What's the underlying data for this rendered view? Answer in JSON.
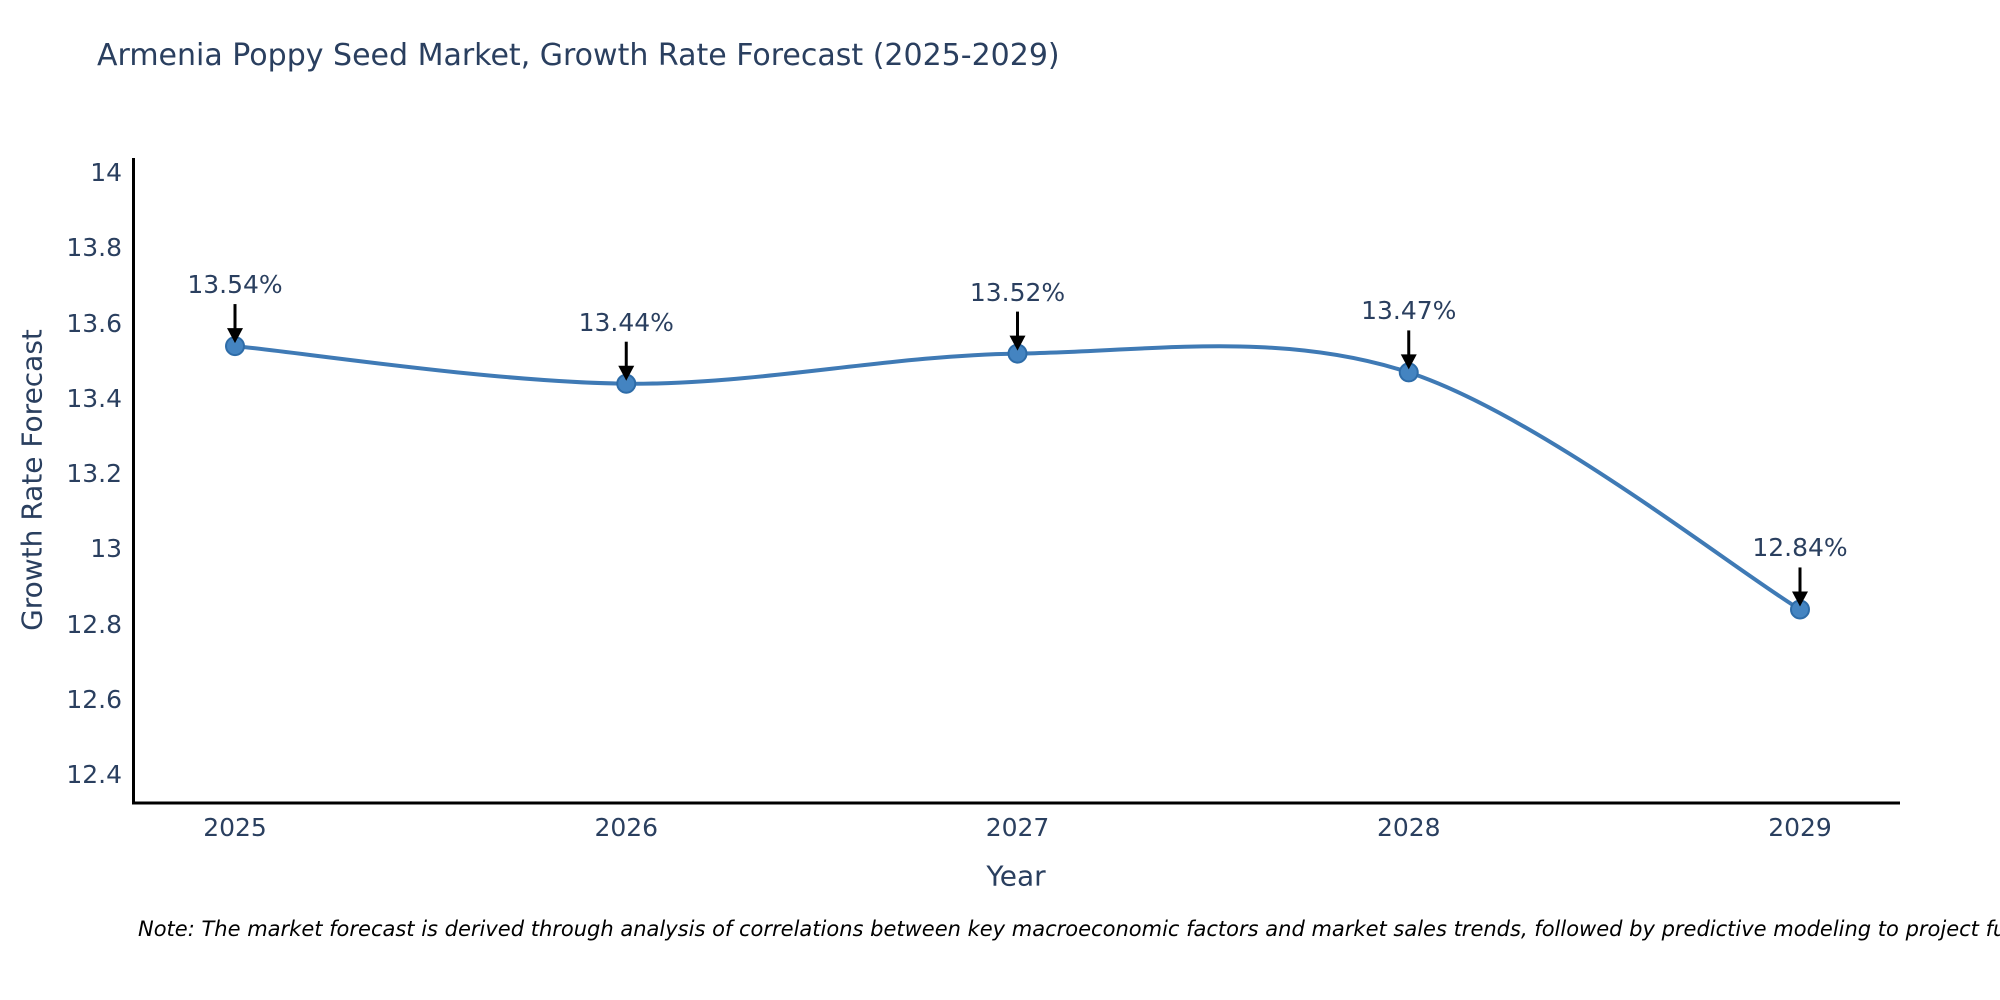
{
  "header": {
    "title": "Armenia Poppy Seed Market, Growth Rate Forecast (2025-2029)"
  },
  "footer": {
    "note": "Note: The market forecast is derived through analysis of correlations between key macroeconomic factors and market sales trends, followed by predictive modeling to project future sales"
  },
  "colors": {
    "background": "#ffffff",
    "line": "#3f7ab5",
    "marker_fill": "#4484c1",
    "marker_edge": "#2e6ca8",
    "axis": "#000000",
    "arrow": "#000000",
    "text": "#2a3f5f",
    "note_text": "#000000"
  },
  "chart_data": {
    "type": "line",
    "title": "Armenia Poppy Seed Market, Growth Rate Forecast (2025-2029)",
    "categories": [
      "2025",
      "2026",
      "2027",
      "2028",
      "2029"
    ],
    "x": [
      2025,
      2026,
      2027,
      2028,
      2029
    ],
    "series": [
      {
        "name": "Growth Rate Forecast",
        "values": [
          13.54,
          13.44,
          13.52,
          13.47,
          12.84
        ]
      }
    ],
    "point_labels": [
      "13.54%",
      "13.44%",
      "13.52%",
      "13.47%",
      "12.84%"
    ],
    "xlabel": "Year",
    "ylabel": "Growth Rate Forecast",
    "ylim": [
      12.4,
      14
    ],
    "ytick_values": [
      14,
      13.8,
      13.6,
      13.4,
      13.2,
      13,
      12.8,
      12.6,
      12.4
    ],
    "ytick_labels": [
      "14",
      "13.8",
      "13.6",
      "13.4",
      "13.2",
      "13",
      "12.8",
      "12.6",
      "12.4"
    ],
    "line_shape": "spline",
    "markers": true,
    "grid": false,
    "legend": false,
    "annotation_style": "value-label-with-down-arrow"
  }
}
